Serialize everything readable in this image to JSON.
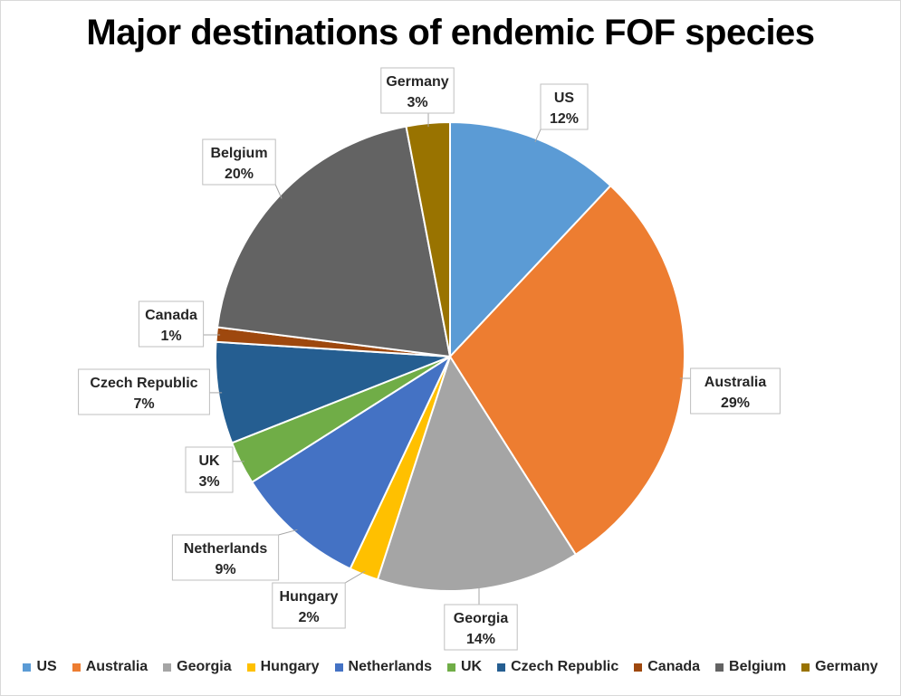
{
  "chart_data": {
    "type": "pie",
    "title": "Major destinations of endemic FOF species",
    "categories": [
      "US",
      "Australia",
      "Georgia",
      "Hungary",
      "Netherlands",
      "UK",
      "Czech Republic",
      "Canada",
      "Belgium",
      "Germany"
    ],
    "values": [
      12,
      29,
      14,
      2,
      9,
      3,
      7,
      1,
      20,
      3
    ],
    "value_labels": [
      "12%",
      "29%",
      "14%",
      "2%",
      "9%",
      "3%",
      "7%",
      "1%",
      "20%",
      "3%"
    ],
    "colors": [
      "#5b9bd5",
      "#ed7d31",
      "#a5a5a5",
      "#ffc000",
      "#4472c4",
      "#70ad47",
      "#255e91",
      "#9e480e",
      "#636363",
      "#997300"
    ],
    "legend_position": "bottom",
    "start_angle_deg": 0,
    "direction": "clockwise"
  }
}
